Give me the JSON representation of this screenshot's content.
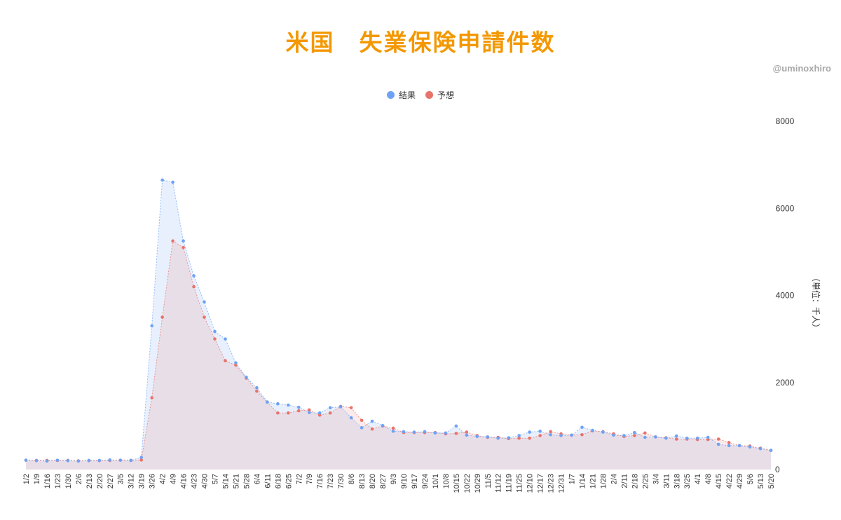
{
  "header": {
    "title": "米国　失業保険申請件数",
    "credit": "@uminoxhiro"
  },
  "legend": [
    {
      "label": "結果",
      "color": "#6ea2f5"
    },
    {
      "label": "予想",
      "color": "#e8736b"
    }
  ],
  "chart_data": {
    "type": "area",
    "title": "米国　失業保険申請件数",
    "xlabel": "",
    "ylabel": "（単位：千人）",
    "ylim": [
      0,
      8000
    ],
    "yticks": [
      0,
      2000,
      4000,
      6000,
      8000
    ],
    "y_axis_position": "right",
    "grid": false,
    "legend_position": "top",
    "categories": [
      "1/2",
      "1/9",
      "1/16",
      "1/23",
      "1/30",
      "2/6",
      "2/13",
      "2/20",
      "2/27",
      "3/5",
      "3/12",
      "3/19",
      "3/26",
      "4/2",
      "4/9",
      "4/16",
      "4/23",
      "4/30",
      "5/7",
      "5/14",
      "5/21",
      "5/28",
      "6/4",
      "6/11",
      "6/18",
      "6/25",
      "7/2",
      "7/9",
      "7/16",
      "7/23",
      "7/30",
      "8/6",
      "8/13",
      "8/20",
      "8/27",
      "9/3",
      "9/10",
      "9/17",
      "9/24",
      "10/1",
      "10/8",
      "10/15",
      "10/22",
      "10/29",
      "11/5",
      "11/12",
      "11/19",
      "11/25",
      "12/10",
      "12/17",
      "12/23",
      "12/31",
      "1/7",
      "1/14",
      "1/21",
      "1/28",
      "2/4",
      "2/11",
      "2/18",
      "2/25",
      "3/4",
      "3/11",
      "3/18",
      "3/25",
      "4/1",
      "4/8",
      "4/15",
      "4/22",
      "4/29",
      "5/6",
      "5/13",
      "5/20"
    ],
    "series": [
      {
        "name": "結果",
        "color": "#6ea2f5",
        "values": [
          215,
          205,
          195,
          215,
          205,
          195,
          210,
          210,
          220,
          215,
          210,
          280,
          3300,
          6650,
          6600,
          5250,
          4450,
          3850,
          3170,
          3000,
          2450,
          2120,
          1880,
          1550,
          1510,
          1480,
          1430,
          1310,
          1300,
          1420,
          1440,
          1190,
          960,
          1110,
          1010,
          880,
          870,
          860,
          870,
          840,
          840,
          1000,
          790,
          760,
          750,
          720,
          730,
          780,
          860,
          880,
          800,
          780,
          790,
          970,
          900,
          860,
          790,
          780,
          850,
          740,
          750,
          720,
          770,
          720,
          720,
          740,
          580,
          550,
          550,
          520,
          480,
          440
        ]
      },
      {
        "name": "予想",
        "color": "#e8736b",
        "values": [
          215,
          210,
          210,
          210,
          210,
          200,
          205,
          205,
          210,
          215,
          210,
          220,
          1650,
          3500,
          5250,
          5100,
          4200,
          3500,
          3000,
          2500,
          2400,
          2100,
          1800,
          1550,
          1300,
          1300,
          1350,
          1370,
          1250,
          1300,
          1450,
          1420,
          1130,
          930,
          1000,
          950,
          850,
          850,
          850,
          850,
          820,
          830,
          860,
          780,
          740,
          740,
          710,
          720,
          720,
          780,
          870,
          820,
          790,
          800,
          890,
          870,
          820,
          760,
          780,
          840,
          750,
          730,
          700,
          700,
          690,
          690,
          700,
          620,
          550,
          540,
          490,
          440
        ]
      }
    ]
  }
}
